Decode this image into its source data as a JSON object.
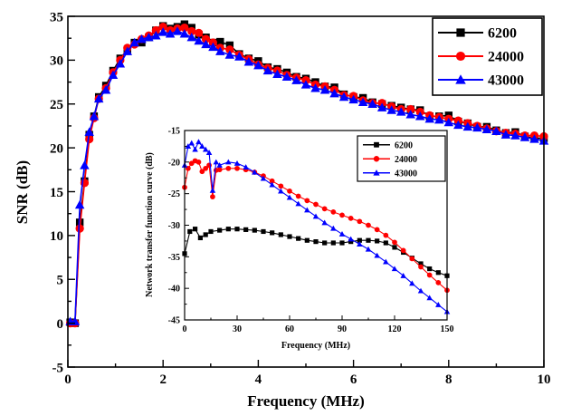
{
  "colors": {
    "s6200": "#000000",
    "s24000": "#ff0000",
    "s43000": "#0000ff"
  },
  "chart_data": [
    {
      "type": "line",
      "xlabel": "Frequency (MHz)",
      "ylabel": "SNR (dB)",
      "xlim": [
        0,
        10
      ],
      "ylim": [
        -5,
        35
      ],
      "xticks": [
        "0",
        "2",
        "4",
        "6",
        "8",
        "10"
      ],
      "yticks": [
        "-5",
        "0",
        "5",
        "10",
        "15",
        "20",
        "25",
        "30",
        "35"
      ],
      "legend_position": "top-right",
      "series": [
        {
          "name": "6200",
          "color": "#000000",
          "marker": "square",
          "x": [
            0.05,
            0.15,
            0.25,
            0.35,
            0.45,
            0.55,
            0.65,
            0.8,
            0.95,
            1.1,
            1.25,
            1.4,
            1.55,
            1.7,
            1.85,
            2.0,
            2.15,
            2.3,
            2.45,
            2.6,
            2.75,
            2.9,
            3.05,
            3.2,
            3.4,
            3.6,
            3.8,
            4.0,
            4.2,
            4.4,
            4.6,
            4.8,
            5.0,
            5.2,
            5.4,
            5.6,
            5.8,
            6.0,
            6.2,
            6.4,
            6.6,
            6.8,
            7.0,
            7.2,
            7.4,
            7.6,
            7.8,
            8.0,
            8.2,
            8.4,
            8.6,
            8.8,
            9.0,
            9.2,
            9.4,
            9.6,
            9.8,
            10.0
          ],
          "y": [
            0.1,
            0.0,
            11.5,
            16.2,
            21.5,
            23.6,
            25.8,
            27.1,
            28.8,
            30.2,
            31.2,
            32.0,
            32.0,
            32.6,
            33.4,
            33.9,
            33.6,
            33.8,
            34.1,
            33.7,
            32.9,
            32.6,
            32.0,
            32.1,
            31.7,
            30.7,
            30.2,
            29.9,
            29.2,
            29.0,
            28.6,
            28.1,
            27.9,
            27.5,
            27.0,
            26.9,
            26.1,
            25.8,
            25.7,
            25.2,
            25.0,
            24.8,
            24.6,
            24.4,
            24.3,
            23.6,
            23.6,
            23.7,
            23.0,
            22.8,
            22.4,
            22.4,
            22.0,
            21.7,
            21.8,
            21.3,
            21.1,
            21.1
          ]
        },
        {
          "name": "24000",
          "color": "#ff0000",
          "marker": "circle",
          "x": [
            0.05,
            0.15,
            0.25,
            0.35,
            0.45,
            0.55,
            0.65,
            0.8,
            0.95,
            1.1,
            1.25,
            1.4,
            1.55,
            1.7,
            1.85,
            2.0,
            2.15,
            2.3,
            2.45,
            2.6,
            2.75,
            2.9,
            3.05,
            3.2,
            3.4,
            3.6,
            3.8,
            4.0,
            4.2,
            4.4,
            4.6,
            4.8,
            5.0,
            5.2,
            5.4,
            5.6,
            5.8,
            6.0,
            6.2,
            6.4,
            6.6,
            6.8,
            7.0,
            7.2,
            7.4,
            7.6,
            7.8,
            8.0,
            8.2,
            8.4,
            8.6,
            8.8,
            9.0,
            9.2,
            9.4,
            9.6,
            9.8,
            10.0
          ],
          "y": [
            0.0,
            0.0,
            10.8,
            16.0,
            21.0,
            23.4,
            25.6,
            26.8,
            28.6,
            30.0,
            31.4,
            31.8,
            32.4,
            32.8,
            33.4,
            33.8,
            33.4,
            33.6,
            33.7,
            33.3,
            33.1,
            32.4,
            32.0,
            31.4,
            31.2,
            30.6,
            30.1,
            29.5,
            29.1,
            28.8,
            28.3,
            28.0,
            27.7,
            27.2,
            27.0,
            26.6,
            26.0,
            25.9,
            25.4,
            25.1,
            25.1,
            24.7,
            24.4,
            24.4,
            24.1,
            23.7,
            23.5,
            23.3,
            23.1,
            22.8,
            22.5,
            22.2,
            21.9,
            21.7,
            21.6,
            21.4,
            21.4,
            21.3
          ]
        },
        {
          "name": "43000",
          "color": "#0000ff",
          "marker": "triangle",
          "x": [
            0.05,
            0.15,
            0.25,
            0.35,
            0.45,
            0.55,
            0.65,
            0.8,
            0.95,
            1.1,
            1.25,
            1.4,
            1.55,
            1.7,
            1.85,
            2.0,
            2.15,
            2.3,
            2.45,
            2.6,
            2.75,
            2.9,
            3.05,
            3.2,
            3.4,
            3.6,
            3.8,
            4.0,
            4.2,
            4.4,
            4.6,
            4.8,
            5.0,
            5.2,
            5.4,
            5.6,
            5.8,
            6.0,
            6.2,
            6.4,
            6.6,
            6.8,
            7.0,
            7.2,
            7.4,
            7.6,
            7.8,
            8.0,
            8.2,
            8.4,
            8.6,
            8.8,
            9.0,
            9.2,
            9.4,
            9.6,
            9.8,
            10.0
          ],
          "y": [
            0.2,
            0.2,
            13.5,
            18.0,
            21.8,
            23.6,
            25.6,
            26.6,
            28.3,
            29.6,
            31.0,
            32.0,
            32.4,
            32.6,
            32.8,
            33.2,
            33.0,
            33.3,
            33.0,
            32.6,
            32.2,
            31.8,
            31.5,
            31.0,
            30.6,
            30.4,
            29.8,
            29.4,
            28.8,
            28.4,
            28.1,
            27.7,
            27.2,
            26.8,
            26.6,
            26.2,
            25.8,
            25.5,
            25.2,
            25.0,
            24.6,
            24.3,
            24.1,
            23.8,
            23.6,
            23.3,
            23.2,
            22.9,
            22.6,
            22.4,
            22.3,
            22.1,
            21.9,
            21.5,
            21.4,
            21.2,
            21.0,
            20.8
          ]
        }
      ]
    },
    {
      "type": "line",
      "xlabel": "Frequency (MHz)",
      "ylabel": "Network transfer function curve (dB)",
      "xlim": [
        0,
        150
      ],
      "ylim": [
        -45,
        -15
      ],
      "xticks": [
        "0",
        "30",
        "60",
        "90",
        "120",
        "150"
      ],
      "yticks": [
        "-15",
        "-20",
        "-25",
        "-30",
        "-35",
        "-40",
        "-45"
      ],
      "legend_position": "top-right",
      "series": [
        {
          "name": "6200",
          "color": "#000000",
          "marker": "square",
          "x": [
            0,
            3,
            6,
            9,
            12,
            15,
            20,
            25,
            30,
            35,
            40,
            45,
            50,
            55,
            60,
            65,
            70,
            75,
            80,
            85,
            90,
            95,
            100,
            105,
            110,
            115,
            120,
            125,
            130,
            135,
            140,
            145,
            150
          ],
          "y": [
            -34.5,
            -31.0,
            -30.6,
            -32.0,
            -31.5,
            -31.0,
            -30.8,
            -30.6,
            -30.6,
            -30.7,
            -30.8,
            -31.0,
            -31.2,
            -31.5,
            -31.8,
            -32.1,
            -32.4,
            -32.6,
            -32.8,
            -32.8,
            -32.8,
            -32.6,
            -32.4,
            -32.4,
            -32.5,
            -32.8,
            -33.5,
            -34.3,
            -35.2,
            -36.1,
            -36.9,
            -37.5,
            -38.0
          ]
        },
        {
          "name": "24000",
          "color": "#ff0000",
          "marker": "circle",
          "x": [
            0,
            2,
            4,
            6,
            8,
            10,
            12,
            14,
            16,
            18,
            20,
            25,
            30,
            35,
            40,
            45,
            50,
            55,
            60,
            65,
            70,
            75,
            80,
            85,
            90,
            95,
            100,
            105,
            110,
            115,
            120,
            125,
            130,
            135,
            140,
            145,
            150
          ],
          "y": [
            -24.0,
            -21.0,
            -20.2,
            -19.8,
            -20.0,
            -21.5,
            -21.0,
            -20.5,
            -25.5,
            -21.3,
            -21.2,
            -21.0,
            -21.0,
            -21.2,
            -21.6,
            -22.2,
            -23.0,
            -23.8,
            -24.6,
            -25.4,
            -26.1,
            -26.7,
            -27.4,
            -27.9,
            -28.4,
            -28.9,
            -29.4,
            -30.0,
            -30.7,
            -31.6,
            -32.7,
            -34.0,
            -35.3,
            -36.6,
            -37.9,
            -39.1,
            -40.3
          ]
        },
        {
          "name": "43000",
          "color": "#0000ff",
          "marker": "triangle",
          "x": [
            0,
            2,
            4,
            6,
            8,
            10,
            12,
            14,
            16,
            18,
            20,
            25,
            30,
            35,
            40,
            45,
            50,
            55,
            60,
            65,
            70,
            75,
            80,
            85,
            90,
            95,
            100,
            105,
            110,
            115,
            120,
            125,
            130,
            135,
            140,
            145,
            150
          ],
          "y": [
            -20.5,
            -17.5,
            -17.0,
            -18.0,
            -16.8,
            -17.5,
            -18.0,
            -18.5,
            -24.5,
            -20.0,
            -20.5,
            -20.0,
            -20.2,
            -20.8,
            -21.6,
            -22.6,
            -23.6,
            -24.6,
            -25.6,
            -26.6,
            -27.6,
            -28.6,
            -29.6,
            -30.5,
            -31.4,
            -32.2,
            -33.0,
            -33.8,
            -34.8,
            -35.8,
            -36.9,
            -38.0,
            -39.2,
            -40.4,
            -41.5,
            -42.6,
            -43.7
          ]
        }
      ]
    }
  ]
}
